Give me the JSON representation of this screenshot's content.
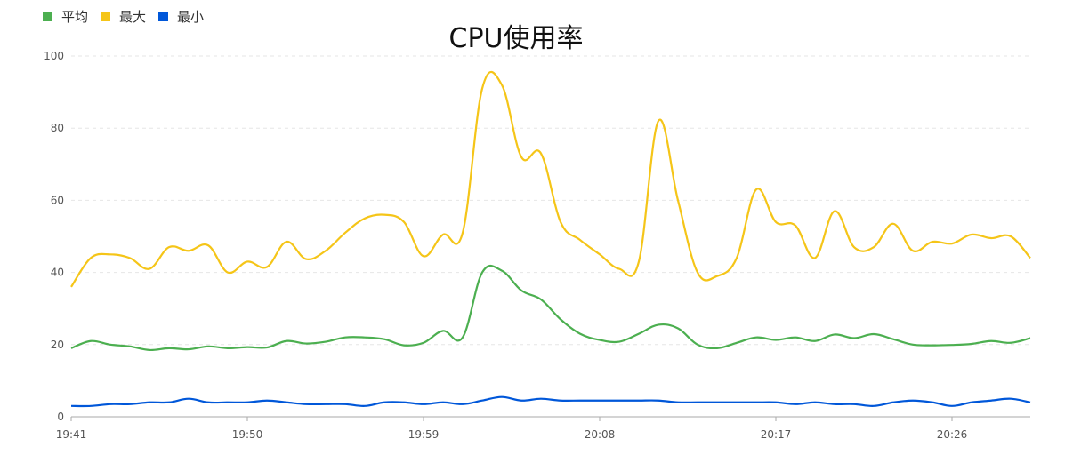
{
  "chart_data": {
    "type": "line",
    "title": "CPU使用率",
    "xlabel": "",
    "ylabel": "",
    "ylim": [
      0,
      100
    ],
    "yticks": [
      0,
      20,
      40,
      60,
      80,
      100
    ],
    "xticks": [
      "19:41",
      "19:50",
      "19:59",
      "20:08",
      "20:17",
      "20:26"
    ],
    "x": [
      "19:41",
      "19:42",
      "19:43",
      "19:44",
      "19:45",
      "19:46",
      "19:47",
      "19:48",
      "19:49",
      "19:50",
      "19:51",
      "19:52",
      "19:53",
      "19:54",
      "19:55",
      "19:56",
      "19:57",
      "19:58",
      "19:59",
      "20:00",
      "20:01",
      "20:02",
      "20:03",
      "20:04",
      "20:05",
      "20:06",
      "20:07",
      "20:08",
      "20:09",
      "20:10",
      "20:11",
      "20:12",
      "20:13",
      "20:14",
      "20:15",
      "20:16",
      "20:17",
      "20:18",
      "20:19",
      "20:20",
      "20:21",
      "20:22",
      "20:23",
      "20:24",
      "20:25",
      "20:26",
      "20:27",
      "20:28",
      "20:29",
      "20:30"
    ],
    "grid": true,
    "legend_position": "top-left",
    "series": [
      {
        "name": "平均",
        "color": "#4caf50",
        "values": [
          19,
          21,
          20,
          19.5,
          18.5,
          19,
          18.7,
          19.5,
          19,
          19.3,
          19.2,
          21,
          20.3,
          20.8,
          22,
          22,
          21.5,
          19.8,
          20.5,
          23.8,
          22,
          40,
          40.5,
          35,
          32.5,
          27,
          23,
          21.3,
          20.8,
          23,
          25.5,
          24.5,
          20,
          19,
          20.5,
          22,
          21.3,
          22,
          21,
          22.8,
          21.8,
          22.9,
          21.5,
          20,
          19.8,
          19.9,
          20.2,
          21,
          20.5,
          21.8
        ]
      },
      {
        "name": "最大",
        "color": "#f5c518",
        "values": [
          36,
          44,
          45,
          44,
          41,
          47,
          46,
          47.5,
          40,
          43,
          41.5,
          48.5,
          43.7,
          46,
          51,
          55,
          56,
          54,
          44.5,
          50.5,
          51,
          91,
          92,
          72,
          73,
          54,
          49,
          45,
          41,
          43,
          82,
          60,
          40,
          39,
          44,
          63,
          54,
          53,
          44,
          57,
          47,
          47,
          53.5,
          46,
          48.5,
          48,
          50.5,
          49.5,
          50,
          44
        ]
      },
      {
        "name": "最小",
        "color": "#0057d9",
        "values": [
          3,
          3,
          3.5,
          3.5,
          4,
          4,
          5,
          4,
          4,
          4,
          4.5,
          4,
          3.5,
          3.5,
          3.5,
          3,
          4,
          4,
          3.5,
          4,
          3.5,
          4.5,
          5.5,
          4.5,
          5,
          4.5,
          4.5,
          4.5,
          4.5,
          4.5,
          4.5,
          4,
          4,
          4,
          4,
          4,
          4,
          3.5,
          4,
          3.5,
          3.5,
          3,
          4,
          4.5,
          4,
          3,
          4,
          4.5,
          5,
          4
        ]
      }
    ]
  }
}
